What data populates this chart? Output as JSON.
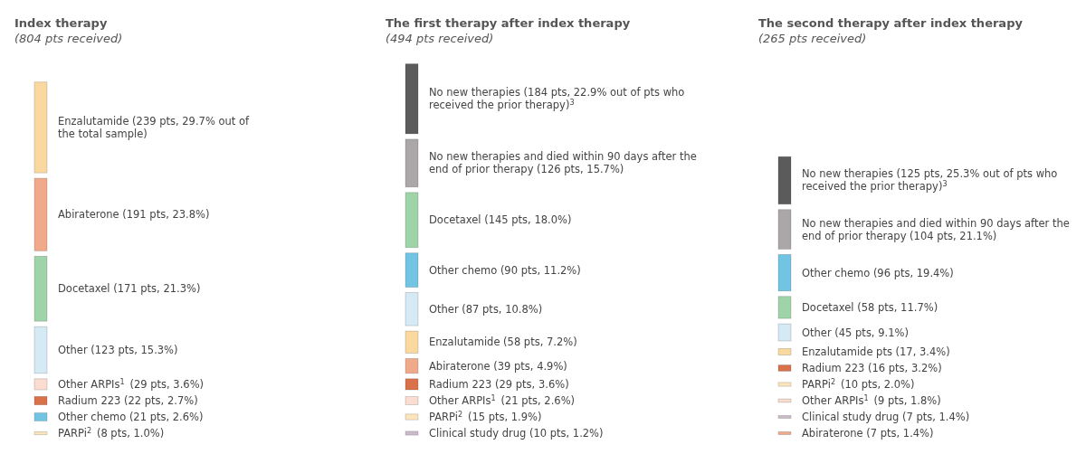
{
  "chart_data": [
    {
      "type": "other",
      "title": "Index therapy",
      "subtitle": "(804 pts received)",
      "categories": [
        "Enzalutamide",
        "Abiraterone",
        "Docetaxel",
        "Other",
        "Other ARPIs$^{1}$",
        "Radium 223",
        "Other chemo",
        "PARPi$^{2}$"
      ],
      "values": [
        239,
        191,
        171,
        123,
        29,
        22,
        21,
        8
      ],
      "value_labels": [
        "(239 pts, 29.7% out of the total sample)",
        "(191 pts, 23.8%)",
        "(171 pts, 21.3%)",
        "(123 pts, 15.3%)",
        "(29 pts, 3.6%)",
        "(22 pts, 2.7%)",
        "(21 pts, 2.6%)",
        "(8 pts, 1.0%)"
      ],
      "colors": [
        "#fad9a0",
        "#f0a98a",
        "#9fd4a9",
        "#d6eaf6",
        "#fbdcd0",
        "#d9714b",
        "#72c4e3",
        "#fbe5bd"
      ]
    },
    {
      "type": "other",
      "title": "The first therapy after index therapy",
      "subtitle": "(494 pts received)",
      "categories": [
        "No new therapies",
        "No new therapies and died within 90 days after the end of prior therapy",
        "Docetaxel",
        "Other chemo",
        "Other",
        "Enzalutamide",
        "Abiraterone",
        "Radium 223",
        "Other ARPIs$^{1}$",
        "PARPi$^{2}$",
        "Clinical study drug"
      ],
      "values": [
        184,
        126,
        145,
        90,
        87,
        58,
        39,
        29,
        21,
        15,
        10
      ],
      "value_labels": [
        "(184 pts, 22.9% out of pts who received the prior therapy)$^{3}$",
        "(126 pts, 15.7%)",
        "(145 pts, 18.0%)",
        "(90 pts, 11.2%)",
        "(87 pts, 10.8%)",
        "(58 pts, 7.2%)",
        "(39 pts, 4.9%)",
        "(29 pts, 3.6%)",
        "(21 pts, 2.6%)",
        "(15 pts, 1.9%)",
        "(10 pts, 1.2%)"
      ],
      "colors": [
        "#5b5b5b",
        "#aba7a9",
        "#9fd4a9",
        "#72c4e3",
        "#d6eaf6",
        "#fad9a0",
        "#f0a98a",
        "#d9714b",
        "#fbdcd0",
        "#fbe5bd",
        "#cbbbc9"
      ]
    },
    {
      "type": "other",
      "title": "The second therapy after index therapy",
      "subtitle": "(265 pts received)",
      "categories": [
        "No new therapies",
        "No new therapies and died within 90 days after the end of prior therapy",
        "Other chemo",
        "Docetaxel",
        "Other",
        "Enzalutamide pts",
        "Radium 223",
        "PARPi$^{2}$",
        "Other ARPIs$^{1}$",
        "Clinical study drug",
        "Abiraterone"
      ],
      "values": [
        125,
        104,
        96,
        58,
        45,
        17,
        16,
        10,
        9,
        7,
        7
      ],
      "value_labels": [
        "(125 pts, 25.3% out of pts who received the prior therapy)$^{3}$",
        "(104 pts, 21.1%)",
        "(96 pts, 19.4%)",
        "(58 pts, 11.7%)",
        "(45 pts, 9.1%)",
        "(17, 3.4%)",
        "(16 pts, 3.2%)",
        "(10 pts, 2.0%)",
        "(9 pts, 1.8%)",
        "(7 pts, 1.4%)",
        "(7 pts, 1.4%)"
      ],
      "colors": [
        "#5b5b5b",
        "#aba7a9",
        "#72c4e3",
        "#9fd4a9",
        "#d6eaf6",
        "#fad9a0",
        "#d9714b",
        "#fbe5bd",
        "#fbdcd0",
        "#cbbbc9",
        "#f0a98a"
      ]
    }
  ]
}
